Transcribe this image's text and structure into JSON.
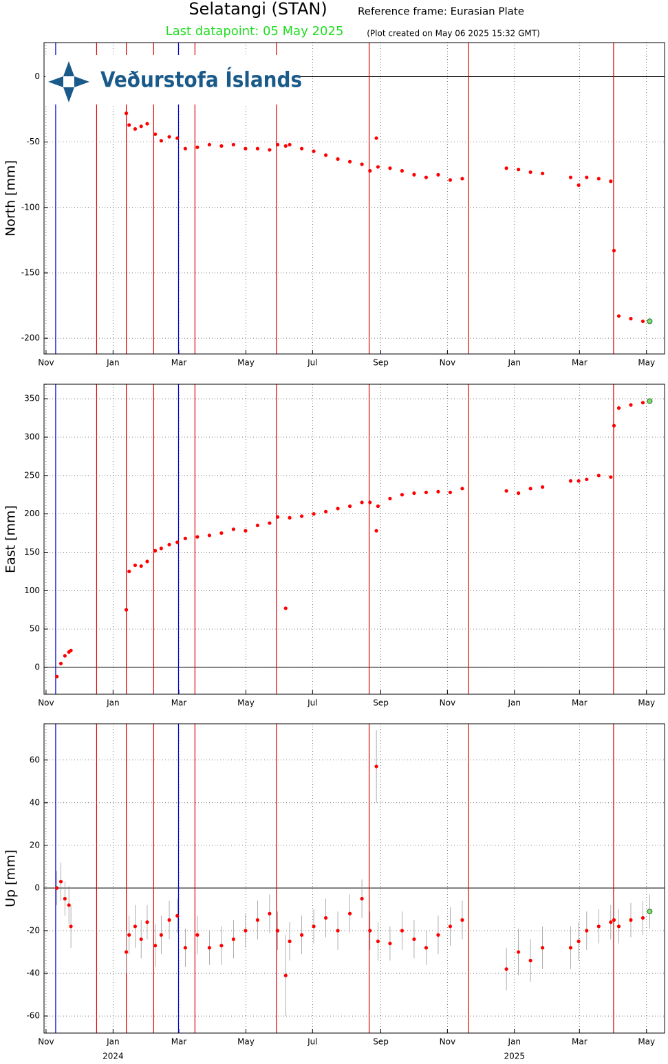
{
  "chart_data": {
    "type": "scatter",
    "title": "Selatangi (STAN)",
    "subtitle": "Reference frame: Eurasian Plate",
    "last_datapoint": "Last datapoint: 05 May 2025",
    "created": "(Plot created on May 06 2025 15:32 GMT)",
    "logo": "Veðurstofa Íslands",
    "point_color": "#ff0000",
    "last_point_color": "#7ddc6e",
    "error_color": "#999999",
    "grid": true,
    "xlim": [
      2023.828,
      2025.374
    ],
    "xticks": [
      {
        "value": 2023.833,
        "label": "Nov"
      },
      {
        "value": 2024.0,
        "label": "Jan"
      },
      {
        "value": 2024.164,
        "label": "Mar"
      },
      {
        "value": 2024.331,
        "label": "May"
      },
      {
        "value": 2024.497,
        "label": "Jul"
      },
      {
        "value": 2024.667,
        "label": "Sep"
      },
      {
        "value": 2024.833,
        "label": "Nov"
      },
      {
        "value": 2025.0,
        "label": "Jan"
      },
      {
        "value": 2025.162,
        "label": "Mar"
      },
      {
        "value": 2025.329,
        "label": "May"
      }
    ],
    "year_labels": [
      2024,
      2025
    ],
    "event_lines": [
      {
        "x": 2023.857,
        "color": "#0000cc"
      },
      {
        "x": 2023.959,
        "color": "#dd0000"
      },
      {
        "x": 2024.033,
        "color": "#dd0000"
      },
      {
        "x": 2024.101,
        "color": "#dd0000"
      },
      {
        "x": 2024.163,
        "color": "#0000cc"
      },
      {
        "x": 2024.204,
        "color": "#dd0000"
      },
      {
        "x": 2024.407,
        "color": "#dd0000"
      },
      {
        "x": 2024.638,
        "color": "#dd0000"
      },
      {
        "x": 2024.885,
        "color": "#dd0000"
      },
      {
        "x": 2025.247,
        "color": "#dd0000"
      }
    ],
    "x": [
      2023.86,
      2023.87,
      2023.88,
      2023.89,
      2023.895,
      2024.033,
      2024.04,
      2024.055,
      2024.07,
      2024.085,
      2024.105,
      2024.12,
      2024.14,
      2024.16,
      2024.18,
      2024.21,
      2024.24,
      2024.27,
      2024.3,
      2024.33,
      2024.36,
      2024.39,
      2024.41,
      2024.43,
      2024.44,
      2024.47,
      2024.5,
      2024.53,
      2024.56,
      2024.59,
      2024.62,
      2024.64,
      2024.656,
      2024.66,
      2024.69,
      2024.72,
      2024.75,
      2024.78,
      2024.81,
      2024.84,
      2024.87,
      2024.98,
      2025.01,
      2025.04,
      2025.07,
      2025.14,
      2025.16,
      2025.18,
      2025.21,
      2025.24,
      2025.248,
      2025.26,
      2025.29,
      2025.32,
      2025.337
    ],
    "panels": [
      {
        "ylabel": "North [mm]",
        "ylim": [
          -212,
          26
        ],
        "yticks": [
          -200,
          -150,
          -100,
          -50,
          0
        ],
        "values": [
          null,
          null,
          null,
          null,
          null,
          -28,
          -37,
          -40,
          -38,
          -36,
          -44,
          -49,
          -46,
          -47,
          -55,
          -54,
          -52,
          -53,
          -52,
          -55,
          -55,
          -56,
          -52,
          -53,
          -52,
          -55,
          -57,
          -60,
          -63,
          -65,
          -67,
          -72,
          -47,
          -69,
          -70,
          -72,
          -75,
          -77,
          -75,
          -79,
          -78,
          -70,
          -71,
          -73,
          -74,
          -77,
          -83,
          -77,
          -78,
          -80,
          -133,
          -183,
          -185,
          -187,
          -187
        ]
      },
      {
        "ylabel": "East [mm]",
        "ylim": [
          -35,
          369
        ],
        "yticks": [
          0,
          50,
          100,
          150,
          200,
          250,
          300,
          350
        ],
        "values": [
          -12,
          5,
          15,
          20,
          22,
          75,
          125,
          133,
          132,
          138,
          152,
          155,
          160,
          163,
          168,
          170,
          172,
          175,
          180,
          178,
          185,
          188,
          196,
          77,
          195,
          197,
          200,
          203,
          207,
          210,
          215,
          215,
          178,
          210,
          220,
          225,
          227,
          228,
          229,
          228,
          233,
          230,
          227,
          233,
          235,
          243,
          243,
          245,
          250,
          248,
          315,
          338,
          342,
          345,
          347
        ]
      },
      {
        "ylabel": "Up [mm]",
        "ylim": [
          -68,
          77
        ],
        "yticks": [
          -60,
          -40,
          -20,
          0,
          20,
          40,
          60
        ],
        "values": [
          0,
          3,
          -5,
          -8,
          -18,
          -30,
          -22,
          -18,
          -24,
          -16,
          -27,
          -22,
          -15,
          -13,
          -28,
          -22,
          -28,
          -27,
          -24,
          -20,
          -15,
          -12,
          -20,
          -41,
          -25,
          -22,
          -18,
          -14,
          -20,
          -12,
          -5,
          -20,
          57,
          -25,
          -26,
          -20,
          -24,
          -28,
          -22,
          -18,
          -15,
          -38,
          -30,
          -34,
          -28,
          -28,
          -25,
          -20,
          -18,
          -16,
          -15,
          -18,
          -15,
          -14,
          -11
        ],
        "errors": [
          8,
          9,
          8,
          9,
          10,
          10,
          9,
          10,
          9,
          8,
          10,
          9,
          9,
          8,
          9,
          9,
          8,
          9,
          9,
          8,
          9,
          9,
          9,
          19,
          9,
          9,
          8,
          9,
          9,
          9,
          9,
          9,
          17,
          9,
          8,
          9,
          9,
          8,
          9,
          9,
          9,
          10,
          11,
          10,
          10,
          10,
          9,
          9,
          8,
          8,
          9,
          8,
          8,
          8,
          8
        ]
      }
    ]
  }
}
